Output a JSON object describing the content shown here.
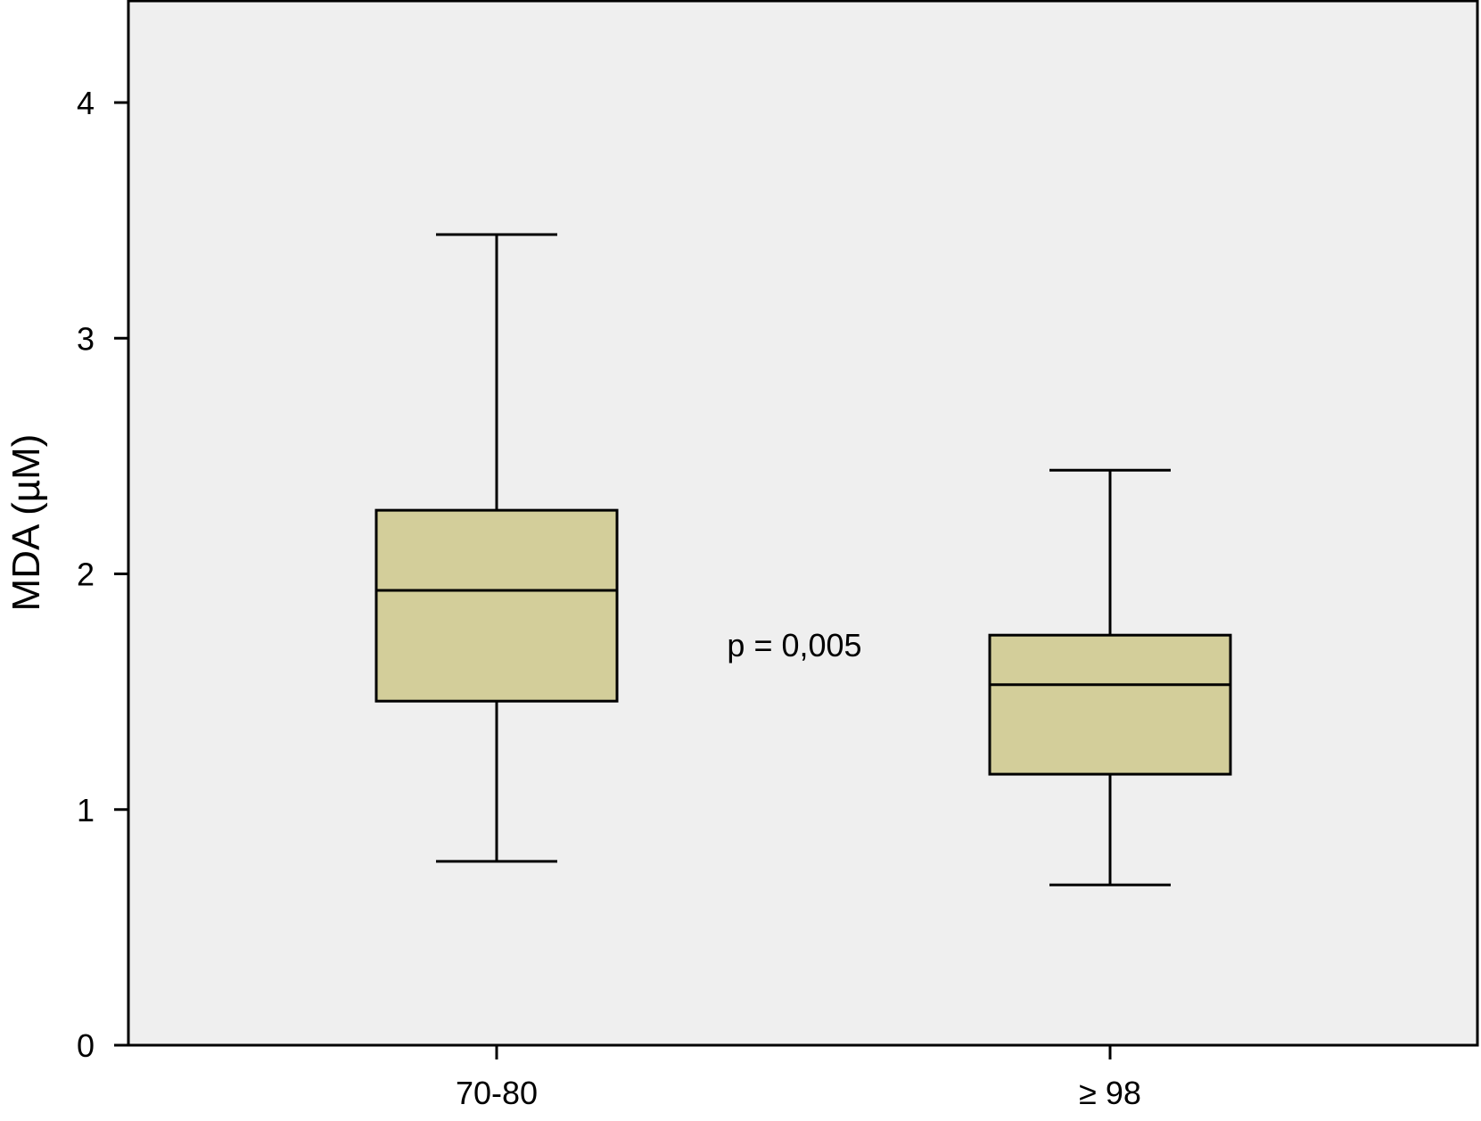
{
  "chart_data": {
    "type": "boxplot",
    "title": "",
    "xlabel": "",
    "ylabel": "MDA (µM)",
    "ylim": [
      0,
      4.4
    ],
    "yticks": [
      0,
      1,
      2,
      3,
      4
    ],
    "ytick_labels": [
      "0",
      "1",
      "2",
      "3",
      "4"
    ],
    "grid": false,
    "legend": "none",
    "categories": [
      "70-80",
      "≥ 98"
    ],
    "boxes": [
      {
        "category": "70-80",
        "whisker_low": 0.78,
        "q1": 1.46,
        "median": 1.93,
        "q3": 2.27,
        "whisker_high": 3.44
      },
      {
        "category": "≥ 98",
        "whisker_low": 0.68,
        "q1": 1.15,
        "median": 1.53,
        "q3": 1.74,
        "whisker_high": 2.44
      }
    ],
    "annotations": [
      {
        "text": "p = 0,005",
        "x_between": [
          0,
          1
        ],
        "y": 1.7
      }
    ],
    "colors": {
      "box_fill": "#d3ce9a",
      "plot_background": "#efefef",
      "line": "#000000"
    }
  }
}
